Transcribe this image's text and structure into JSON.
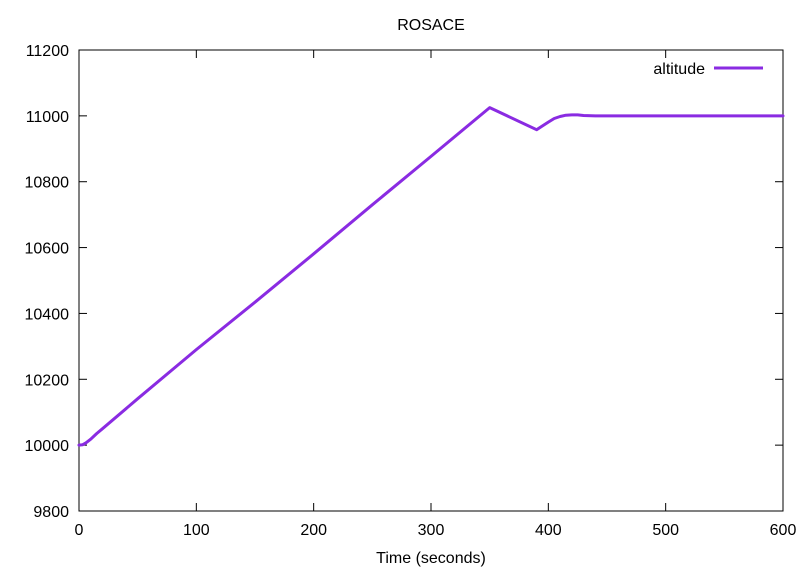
{
  "chart_data": {
    "type": "line",
    "title": "ROSACE",
    "xlabel": "Time (seconds)",
    "ylabel": "",
    "xlim": [
      0,
      600
    ],
    "ylim": [
      9800,
      11200
    ],
    "xticks": [
      0,
      100,
      200,
      300,
      400,
      500,
      600
    ],
    "yticks": [
      9800,
      10000,
      10200,
      10400,
      10600,
      10800,
      11000,
      11200
    ],
    "grid": false,
    "legend_position": "top-right",
    "series": [
      {
        "name": "altitude",
        "color": "#8a2be2",
        "x": [
          0,
          3,
          6,
          10,
          15,
          20,
          50,
          100,
          150,
          200,
          250,
          300,
          350,
          390,
          400,
          405,
          410,
          415,
          420,
          425,
          430,
          440,
          600
        ],
        "y": [
          10000,
          10001,
          10007,
          10018,
          10035,
          10050,
          10141,
          10290,
          10434,
          10581,
          10730,
          10877,
          11025,
          10958,
          10981,
          10992,
          10998,
          11002,
          11003,
          11003,
          11001,
          11000,
          11000
        ]
      }
    ]
  }
}
